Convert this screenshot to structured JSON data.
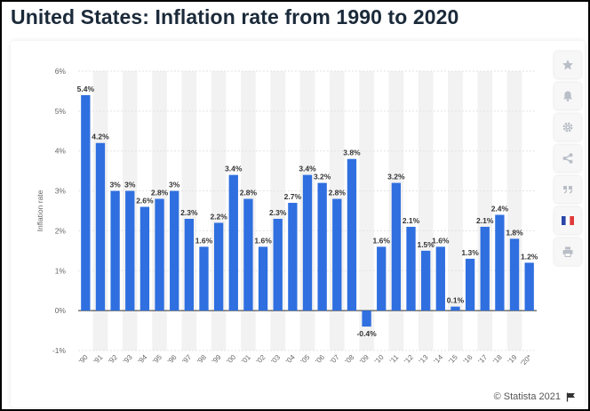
{
  "page": {
    "title": "United States: Inflation rate from 1990 to 2020",
    "credit": "© Statista 2021"
  },
  "toolbar": {
    "items": [
      {
        "icon": "star-icon"
      },
      {
        "icon": "bell-icon"
      },
      {
        "icon": "gear-icon"
      },
      {
        "icon": "share-icon"
      },
      {
        "icon": "quote-icon"
      },
      {
        "icon": "flag-icon"
      },
      {
        "icon": "print-icon"
      }
    ]
  },
  "colors": {
    "bar": "#2f6fe0",
    "band": "#f2f2f2",
    "grid": "#e3e3e3",
    "tick": "#666666",
    "label": "#333333",
    "flag_blue": "#2a46a8",
    "flag_red": "#e03a3a"
  },
  "chart_data": {
    "type": "bar",
    "categories": [
      "'90",
      "'91",
      "'92",
      "'93",
      "'94",
      "'95",
      "'96",
      "'97",
      "'98",
      "'99",
      "'00",
      "'01",
      "'02",
      "'03",
      "'04",
      "'05",
      "'06",
      "'07",
      "'08",
      "'09",
      "'10",
      "'11",
      "'12",
      "'13",
      "'14",
      "'15",
      "'16",
      "'17",
      "'18",
      "'19",
      "'20*"
    ],
    "values": [
      5.4,
      4.2,
      3,
      3,
      2.6,
      2.8,
      3,
      2.3,
      1.6,
      2.2,
      3.4,
      2.8,
      1.6,
      2.3,
      2.7,
      3.4,
      3.2,
      2.8,
      3.8,
      -0.4,
      1.6,
      3.2,
      2.1,
      1.5,
      1.6,
      0.1,
      1.3,
      2.1,
      2.4,
      1.8,
      1.2
    ],
    "labels": [
      "5.4%",
      "4.2%",
      "3%",
      "3%",
      "2.6%",
      "2.8%",
      "3%",
      "2.3%",
      "1.6%",
      "2.2%",
      "3.4%",
      "2.8%",
      "1.6%",
      "2.3%",
      "2.7%",
      "3.4%",
      "3.2%",
      "2.8%",
      "3.8%",
      "-0.4%",
      "1.6%",
      "3.2%",
      "2.1%",
      "1.5%",
      "1.6%",
      "0.1%",
      "1.3%",
      "2.1%",
      "2.4%",
      "1.8%",
      "1.2%"
    ],
    "ylabel": "Inflation rate",
    "xlabel": "",
    "ylim": [
      -1,
      6
    ],
    "yticks": [
      6,
      5,
      4,
      3,
      2,
      1,
      0,
      -1
    ],
    "ytick_labels": [
      "6%",
      "5%",
      "4%",
      "3%",
      "2%",
      "1%",
      "0%",
      "-1%"
    ],
    "grid": true
  }
}
